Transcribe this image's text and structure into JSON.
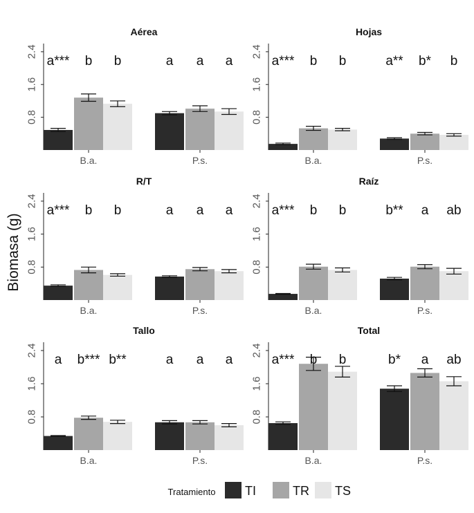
{
  "chart_data": {
    "type": "bar",
    "ylabel": "Biomasa (g)",
    "ylim": [
      0,
      2.6
    ],
    "yticks": [
      0.8,
      1.6,
      2.4
    ],
    "ytick_labels": [
      "0.8",
      "1.6",
      "2.4"
    ],
    "categories": [
      "B.a.",
      "P.s."
    ],
    "legend": {
      "title": "Tratamiento",
      "entries": [
        {
          "name": "TI",
          "color": "#2b2b2b"
        },
        {
          "name": "TR",
          "color": "#a6a6a6"
        },
        {
          "name": "TS",
          "color": "#e6e6e6"
        }
      ],
      "placement": "bottom"
    },
    "panels": [
      {
        "title": "Aérea",
        "series": [
          {
            "name": "TI",
            "values": [
              0.49,
              0.9
            ],
            "errors": [
              0.04,
              0.04
            ]
          },
          {
            "name": "TR",
            "values": [
              1.28,
              1.01
            ],
            "errors": [
              0.09,
              0.07
            ]
          },
          {
            "name": "TS",
            "values": [
              1.13,
              0.94
            ],
            "errors": [
              0.07,
              0.07
            ]
          }
        ],
        "labels": [
          [
            "a***",
            "b",
            "b"
          ],
          [
            "a",
            "a",
            "a"
          ]
        ]
      },
      {
        "title": "Hojas",
        "series": [
          {
            "name": "TI",
            "values": [
              0.15,
              0.28
            ],
            "errors": [
              0.02,
              0.02
            ]
          },
          {
            "name": "TR",
            "values": [
              0.53,
              0.4
            ],
            "errors": [
              0.05,
              0.03
            ]
          },
          {
            "name": "TS",
            "values": [
              0.5,
              0.37
            ],
            "errors": [
              0.03,
              0.03
            ]
          }
        ],
        "labels": [
          [
            "a***",
            "b",
            "b"
          ],
          [
            "a**",
            "b*",
            "b"
          ]
        ]
      },
      {
        "title": "R/T",
        "series": [
          {
            "name": "TI",
            "values": [
              0.35,
              0.57
            ],
            "errors": [
              0.02,
              0.02
            ]
          },
          {
            "name": "TR",
            "values": [
              0.73,
              0.75
            ],
            "errors": [
              0.07,
              0.04
            ]
          },
          {
            "name": "TS",
            "values": [
              0.61,
              0.7
            ],
            "errors": [
              0.03,
              0.04
            ]
          }
        ],
        "labels": [
          [
            "a***",
            "b",
            "b"
          ],
          [
            "a",
            "a",
            "a"
          ]
        ]
      },
      {
        "title": "Raíz",
        "series": [
          {
            "name": "TI",
            "values": [
              0.15,
              0.52
            ],
            "errors": [
              0.01,
              0.03
            ]
          },
          {
            "name": "TR",
            "values": [
              0.81,
              0.81
            ],
            "errors": [
              0.06,
              0.05
            ]
          },
          {
            "name": "TS",
            "values": [
              0.73,
              0.7
            ],
            "errors": [
              0.05,
              0.07
            ]
          }
        ],
        "labels": [
          [
            "a***",
            "b",
            "b"
          ],
          [
            "b**",
            "a",
            "ab"
          ]
        ]
      },
      {
        "title": "Tallo",
        "series": [
          {
            "name": "TI",
            "values": [
              0.34,
              0.67
            ],
            "errors": [
              0.01,
              0.04
            ]
          },
          {
            "name": "TR",
            "values": [
              0.78,
              0.67
            ],
            "errors": [
              0.04,
              0.04
            ]
          },
          {
            "name": "TS",
            "values": [
              0.68,
              0.6
            ],
            "errors": [
              0.04,
              0.04
            ]
          }
        ],
        "labels": [
          [
            "a",
            "b***",
            "b**"
          ],
          [
            "a",
            "a",
            "a"
          ]
        ]
      },
      {
        "title": "Total",
        "series": [
          {
            "name": "TI",
            "values": [
              0.65,
              1.48
            ],
            "errors": [
              0.03,
              0.07
            ]
          },
          {
            "name": "TR",
            "values": [
              2.08,
              1.86
            ],
            "errors": [
              0.16,
              0.1
            ]
          },
          {
            "name": "TS",
            "values": [
              1.89,
              1.66
            ],
            "errors": [
              0.13,
              0.11
            ]
          }
        ],
        "labels": [
          [
            "a***",
            "b",
            "b"
          ],
          [
            "b*",
            "a",
            "ab"
          ]
        ]
      }
    ]
  }
}
